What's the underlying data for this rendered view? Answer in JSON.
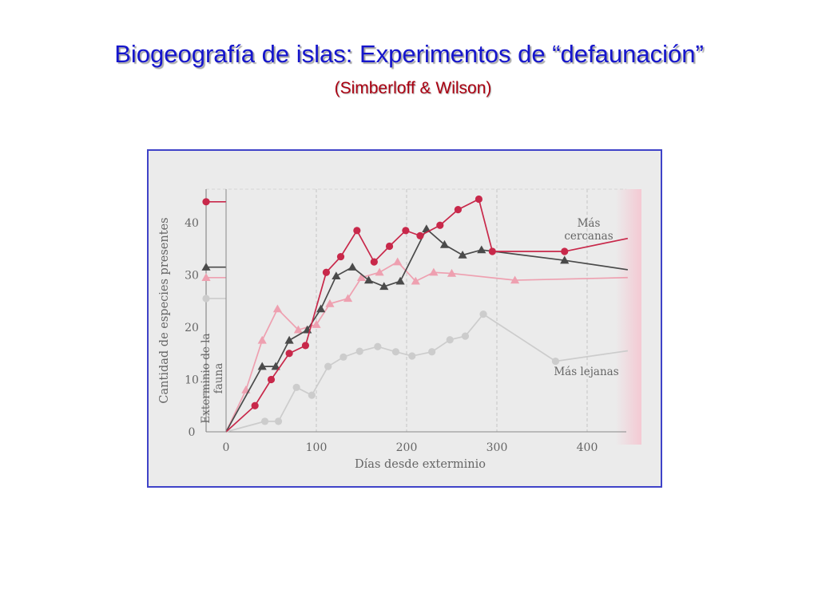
{
  "slide": {
    "title": "Biogeografía de islas: Experimentos de “defaunación”",
    "subtitle": "(Simberloff & Wilson)"
  },
  "chart_data": {
    "type": "line",
    "xlabel": "Días desde exterminio",
    "ylabel": "Cantidad de especies presentes",
    "xlim": [
      -30,
      445
    ],
    "ylim": [
      0,
      46
    ],
    "xticks": [
      0,
      100,
      200,
      300,
      400
    ],
    "yticks": [
      0,
      10,
      20,
      30,
      40
    ],
    "annotation": {
      "line1": "Exterminio de la",
      "line2": "fauna"
    },
    "labels": {
      "near1": "Más",
      "near2": "cercanas",
      "far": "Más lejanas"
    },
    "series": [
      {
        "marker": "circle",
        "color": "#c8284a",
        "initial": 44,
        "points": [
          [
            0,
            0
          ],
          [
            32,
            5
          ],
          [
            50,
            10
          ],
          [
            70,
            15
          ],
          [
            88,
            16.5
          ],
          [
            111,
            30.5
          ],
          [
            127,
            33.5
          ],
          [
            145,
            38.5
          ],
          [
            164,
            32.5
          ],
          [
            181,
            35.5
          ],
          [
            199,
            38.5
          ],
          [
            215,
            37.5
          ],
          [
            237,
            39.5
          ],
          [
            257,
            42.5
          ],
          [
            280,
            44.5
          ],
          [
            295,
            34.5
          ],
          [
            375,
            34.5
          ],
          [
            445,
            37
          ]
        ]
      },
      {
        "marker": "triangle",
        "color": "#4a4a4a",
        "initial": 31.5,
        "points": [
          [
            0,
            0
          ],
          [
            40,
            12.5
          ],
          [
            55,
            12.5
          ],
          [
            70,
            17.5
          ],
          [
            90,
            19.5
          ],
          [
            105,
            23.5
          ],
          [
            122,
            29.8
          ],
          [
            140,
            31.5
          ],
          [
            158,
            29
          ],
          [
            175,
            27.8
          ],
          [
            193,
            28.8
          ],
          [
            222,
            38.8
          ],
          [
            242,
            35.8
          ],
          [
            262,
            33.8
          ],
          [
            283,
            34.8
          ],
          [
            375,
            32.8
          ],
          [
            445,
            31
          ]
        ]
      },
      {
        "marker": "triangle",
        "color": "#eea0b0",
        "initial": 29.5,
        "points": [
          [
            0,
            0
          ],
          [
            22,
            8
          ],
          [
            40,
            17.5
          ],
          [
            57,
            23.5
          ],
          [
            80,
            19.5
          ],
          [
            100,
            20.5
          ],
          [
            115,
            24.5
          ],
          [
            135,
            25.5
          ],
          [
            150,
            29.5
          ],
          [
            170,
            30.5
          ],
          [
            190,
            32.5
          ],
          [
            210,
            28.8
          ],
          [
            230,
            30.5
          ],
          [
            250,
            30.3
          ],
          [
            320,
            29
          ],
          [
            445,
            29.5
          ]
        ]
      },
      {
        "marker": "circle",
        "color": "#cccccc",
        "initial": 25.5,
        "points": [
          [
            0,
            0
          ],
          [
            43,
            2
          ],
          [
            58,
            2
          ],
          [
            78,
            8.5
          ],
          [
            95,
            7
          ],
          [
            113,
            12.5
          ],
          [
            130,
            14.3
          ],
          [
            148,
            15.4
          ],
          [
            168,
            16.3
          ],
          [
            188,
            15.3
          ],
          [
            206,
            14.5
          ],
          [
            228,
            15.3
          ],
          [
            248,
            17.6
          ],
          [
            265,
            18.3
          ],
          [
            285,
            22.5
          ],
          [
            365,
            13.5
          ],
          [
            445,
            15.5
          ]
        ]
      }
    ]
  }
}
